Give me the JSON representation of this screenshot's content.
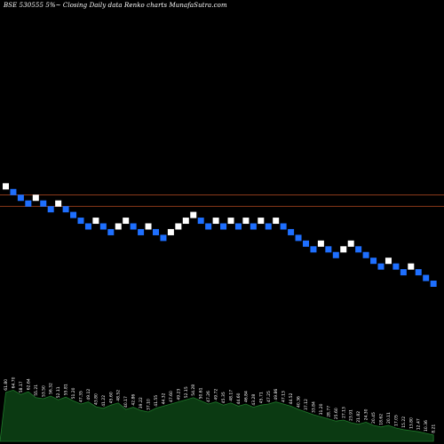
{
  "chart_data": {
    "type": "renko",
    "title": "BSE 530555 5%~  Closing Daily data  Renko  charts MunafaSutra.com",
    "xlabel": "",
    "ylabel": "",
    "box_direction_up_meaning": "white",
    "bricks": [
      {
        "level": 17,
        "dir": "up"
      },
      {
        "level": 16,
        "dir": "down"
      },
      {
        "level": 15,
        "dir": "down"
      },
      {
        "level": 14,
        "dir": "down"
      },
      {
        "level": 15,
        "dir": "up"
      },
      {
        "level": 14,
        "dir": "down"
      },
      {
        "level": 13,
        "dir": "down"
      },
      {
        "level": 14,
        "dir": "up"
      },
      {
        "level": 13,
        "dir": "down"
      },
      {
        "level": 12,
        "dir": "down"
      },
      {
        "level": 11,
        "dir": "down"
      },
      {
        "level": 10,
        "dir": "down"
      },
      {
        "level": 11,
        "dir": "up"
      },
      {
        "level": 10,
        "dir": "down"
      },
      {
        "level": 9,
        "dir": "down"
      },
      {
        "level": 10,
        "dir": "up"
      },
      {
        "level": 11,
        "dir": "up"
      },
      {
        "level": 10,
        "dir": "down"
      },
      {
        "level": 9,
        "dir": "down"
      },
      {
        "level": 10,
        "dir": "up"
      },
      {
        "level": 9,
        "dir": "down"
      },
      {
        "level": 8,
        "dir": "down"
      },
      {
        "level": 9,
        "dir": "up"
      },
      {
        "level": 10,
        "dir": "up"
      },
      {
        "level": 11,
        "dir": "up"
      },
      {
        "level": 12,
        "dir": "up"
      },
      {
        "level": 11,
        "dir": "down"
      },
      {
        "level": 10,
        "dir": "down"
      },
      {
        "level": 11,
        "dir": "up"
      },
      {
        "level": 10,
        "dir": "down"
      },
      {
        "level": 11,
        "dir": "up"
      },
      {
        "level": 10,
        "dir": "down"
      },
      {
        "level": 11,
        "dir": "up"
      },
      {
        "level": 10,
        "dir": "down"
      },
      {
        "level": 11,
        "dir": "up"
      },
      {
        "level": 10,
        "dir": "down"
      },
      {
        "level": 11,
        "dir": "up"
      },
      {
        "level": 10,
        "dir": "down"
      },
      {
        "level": 9,
        "dir": "down"
      },
      {
        "level": 8,
        "dir": "down"
      },
      {
        "level": 7,
        "dir": "down"
      },
      {
        "level": 6,
        "dir": "down"
      },
      {
        "level": 7,
        "dir": "up"
      },
      {
        "level": 6,
        "dir": "down"
      },
      {
        "level": 5,
        "dir": "down"
      },
      {
        "level": 6,
        "dir": "up"
      },
      {
        "level": 7,
        "dir": "up"
      },
      {
        "level": 6,
        "dir": "down"
      },
      {
        "level": 5,
        "dir": "down"
      },
      {
        "level": 4,
        "dir": "down"
      },
      {
        "level": 3,
        "dir": "down"
      },
      {
        "level": 4,
        "dir": "up"
      },
      {
        "level": 3,
        "dir": "down"
      },
      {
        "level": 2,
        "dir": "down"
      },
      {
        "level": 3,
        "dir": "up"
      },
      {
        "level": 2,
        "dir": "down"
      },
      {
        "level": 1,
        "dir": "down"
      },
      {
        "level": 0,
        "dir": "down"
      }
    ],
    "reference_lines": [
      {
        "level": 15.5,
        "color": "#8b3a1a"
      },
      {
        "level": 13.5,
        "color": "#8b3a1a"
      }
    ],
    "volume": {
      "values": [
        0.92,
        0.96,
        0.88,
        0.93,
        0.82,
        0.8,
        0.85,
        0.78,
        0.83,
        0.76,
        0.7,
        0.74,
        0.65,
        0.62,
        0.68,
        0.72,
        0.6,
        0.64,
        0.58,
        0.55,
        0.62,
        0.66,
        0.7,
        0.74,
        0.78,
        0.82,
        0.76,
        0.7,
        0.74,
        0.68,
        0.72,
        0.66,
        0.7,
        0.64,
        0.68,
        0.7,
        0.74,
        0.7,
        0.66,
        0.6,
        0.55,
        0.5,
        0.46,
        0.42,
        0.38,
        0.4,
        0.35,
        0.32,
        0.36,
        0.3,
        0.27,
        0.3,
        0.25,
        0.22,
        0.2,
        0.18,
        0.15,
        0.12
      ],
      "color_fill": "#0b3a12",
      "color_line": "#1f7a2a",
      "labels": [
        "61.80",
        "64.70",
        "58.17",
        "62.64",
        "55.21",
        "53.50",
        "56.32",
        "52.11",
        "55.81",
        "51.20",
        "47.35",
        "49.12",
        "43.80",
        "41.22",
        "45.60",
        "48.52",
        "40.17",
        "42.86",
        "39.22",
        "37.10",
        "41.55",
        "44.32",
        "47.60",
        "49.23",
        "52.15",
        "54.28",
        "50.61",
        "47.26",
        "49.72",
        "45.35",
        "48.17",
        "44.60",
        "46.84",
        "43.28",
        "45.71",
        "47.25",
        "49.86",
        "47.13",
        "44.52",
        "40.36",
        "37.12",
        "33.84",
        "31.20",
        "28.77",
        "25.60",
        "27.13",
        "23.91",
        "21.82",
        "24.30",
        "20.45",
        "18.62",
        "20.11",
        "17.05",
        "15.22",
        "13.80",
        "12.47",
        "10.36",
        "8.21"
      ]
    }
  }
}
